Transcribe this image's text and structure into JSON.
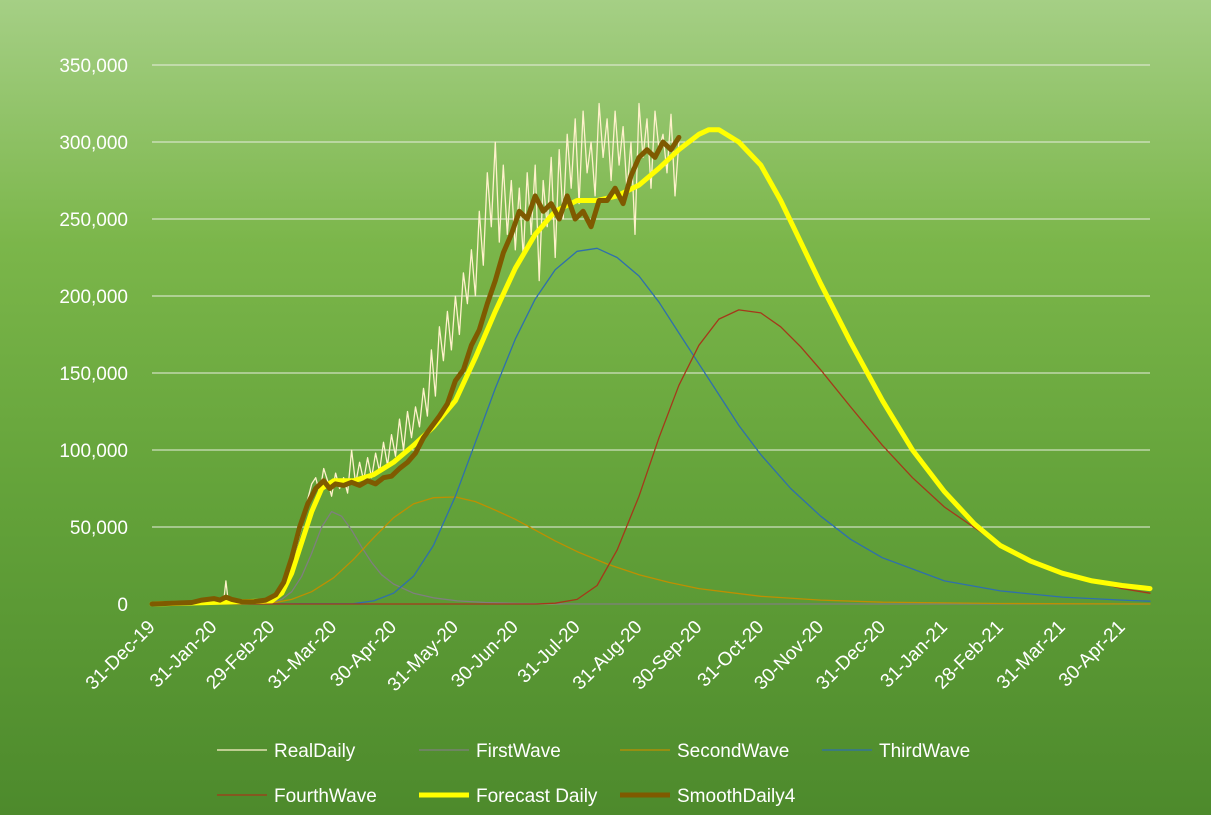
{
  "chart_data": {
    "type": "line",
    "title": "",
    "xlabel": "",
    "ylabel": "",
    "ylim": [
      0,
      350000
    ],
    "y_ticks": [
      0,
      50000,
      100000,
      150000,
      200000,
      250000,
      300000,
      350000
    ],
    "y_tick_labels": [
      "0",
      "50,000",
      "100,000",
      "150,000",
      "200,000",
      "250,000",
      "300,000",
      "350,000"
    ],
    "x_tick_dates": [
      "2019-12-31",
      "2020-01-31",
      "2020-02-29",
      "2020-03-31",
      "2020-04-30",
      "2020-05-31",
      "2020-06-30",
      "2020-07-31",
      "2020-08-31",
      "2020-09-30",
      "2020-10-31",
      "2020-11-30",
      "2020-12-31",
      "2021-01-31",
      "2021-02-28",
      "2021-03-31",
      "2021-04-30"
    ],
    "x_tick_labels": [
      "31-Dec-19",
      "31-Jan-20",
      "29-Feb-20",
      "31-Mar-20",
      "30-Apr-20",
      "31-May-20",
      "30-Jun-20",
      "31-Jul-20",
      "31-Aug-20",
      "30-Sep-20",
      "31-Oct-20",
      "30-Nov-20",
      "31-Dec-20",
      "31-Jan-21",
      "28-Feb-21",
      "31-Mar-21",
      "30-Apr-21"
    ],
    "xlim": [
      "2019-12-31",
      "2021-05-14"
    ],
    "grid": true,
    "legend_position": "bottom",
    "series": [
      {
        "name": "RealDaily",
        "color": "#fff2cc",
        "width": 1.3,
        "x": [
          "2019-12-31",
          "2020-01-20",
          "2020-01-31",
          "2020-02-05",
          "2020-02-06",
          "2020-02-07",
          "2020-02-10",
          "2020-02-17",
          "2020-02-24",
          "2020-03-02",
          "2020-03-06",
          "2020-03-10",
          "2020-03-13",
          "2020-03-16",
          "2020-03-18",
          "2020-03-20",
          "2020-03-22",
          "2020-03-24",
          "2020-03-26",
          "2020-03-28",
          "2020-03-30",
          "2020-04-01",
          "2020-04-03",
          "2020-04-05",
          "2020-04-07",
          "2020-04-09",
          "2020-04-11",
          "2020-04-13",
          "2020-04-15",
          "2020-04-17",
          "2020-04-19",
          "2020-04-21",
          "2020-04-23",
          "2020-04-25",
          "2020-04-27",
          "2020-04-29",
          "2020-05-01",
          "2020-05-03",
          "2020-05-05",
          "2020-05-07",
          "2020-05-09",
          "2020-05-11",
          "2020-05-13",
          "2020-05-15",
          "2020-05-17",
          "2020-05-19",
          "2020-05-21",
          "2020-05-23",
          "2020-05-25",
          "2020-05-27",
          "2020-05-29",
          "2020-05-31",
          "2020-06-02",
          "2020-06-04",
          "2020-06-06",
          "2020-06-08",
          "2020-06-10",
          "2020-06-12",
          "2020-06-14",
          "2020-06-16",
          "2020-06-18",
          "2020-06-20",
          "2020-06-22",
          "2020-06-24",
          "2020-06-26",
          "2020-06-28",
          "2020-06-30",
          "2020-07-02",
          "2020-07-04",
          "2020-07-06",
          "2020-07-08",
          "2020-07-10",
          "2020-07-12",
          "2020-07-14",
          "2020-07-16",
          "2020-07-18",
          "2020-07-20",
          "2020-07-22",
          "2020-07-24",
          "2020-07-26",
          "2020-07-28",
          "2020-07-30",
          "2020-08-01",
          "2020-08-03",
          "2020-08-05",
          "2020-08-07",
          "2020-08-09",
          "2020-08-11",
          "2020-08-13",
          "2020-08-15",
          "2020-08-17",
          "2020-08-19",
          "2020-08-21",
          "2020-08-23",
          "2020-08-25",
          "2020-08-27",
          "2020-08-29",
          "2020-08-31",
          "2020-09-02",
          "2020-09-04",
          "2020-09-06",
          "2020-09-08",
          "2020-09-10",
          "2020-09-12",
          "2020-09-14",
          "2020-09-16",
          "2020-09-18",
          "2020-09-20"
        ],
        "y": [
          0,
          0,
          2000,
          3000,
          15000,
          4000,
          2000,
          1000,
          1500,
          5000,
          12000,
          25000,
          40000,
          55000,
          68000,
          78000,
          82000,
          72000,
          88000,
          80000,
          70000,
          85000,
          75000,
          82000,
          72000,
          100000,
          78000,
          92000,
          80000,
          95000,
          82000,
          98000,
          86000,
          105000,
          90000,
          110000,
          96000,
          120000,
          100000,
          125000,
          108000,
          128000,
          115000,
          140000,
          122000,
          165000,
          135000,
          180000,
          158000,
          190000,
          165000,
          200000,
          175000,
          215000,
          195000,
          230000,
          200000,
          255000,
          220000,
          280000,
          245000,
          300000,
          235000,
          285000,
          240000,
          275000,
          230000,
          270000,
          225000,
          280000,
          240000,
          285000,
          210000,
          275000,
          245000,
          290000,
          225000,
          295000,
          250000,
          305000,
          270000,
          315000,
          260000,
          320000,
          280000,
          300000,
          265000,
          325000,
          290000,
          315000,
          275000,
          320000,
          285000,
          310000,
          268000,
          300000,
          240000,
          325000,
          290000,
          315000,
          270000,
          320000,
          295000,
          305000,
          280000,
          318000,
          265000,
          300000
        ]
      },
      {
        "name": "FirstWave",
        "color": "#7f7f7f",
        "width": 1.3,
        "x": [
          "2019-12-31",
          "2020-02-29",
          "2020-03-05",
          "2020-03-10",
          "2020-03-15",
          "2020-03-20",
          "2020-03-25",
          "2020-03-30",
          "2020-04-04",
          "2020-04-09",
          "2020-04-14",
          "2020-04-19",
          "2020-04-24",
          "2020-04-30",
          "2020-05-10",
          "2020-05-20",
          "2020-06-01",
          "2020-06-15",
          "2020-07-01",
          "2020-08-01",
          "2021-05-14"
        ],
        "y": [
          0,
          1000,
          3000,
          8000,
          18000,
          33000,
          50000,
          60000,
          57000,
          48000,
          37000,
          27000,
          19000,
          13000,
          7000,
          4000,
          2000,
          1000,
          400,
          0,
          0
        ]
      },
      {
        "name": "SecondWave",
        "color": "#bf8f00",
        "width": 1.3,
        "x": [
          "2019-12-31",
          "2020-02-29",
          "2020-03-10",
          "2020-03-20",
          "2020-03-31",
          "2020-04-10",
          "2020-04-20",
          "2020-04-30",
          "2020-05-10",
          "2020-05-20",
          "2020-05-31",
          "2020-06-10",
          "2020-06-20",
          "2020-06-30",
          "2020-07-10",
          "2020-07-20",
          "2020-07-31",
          "2020-08-15",
          "2020-08-31",
          "2020-09-15",
          "2020-09-30",
          "2020-10-31",
          "2020-11-30",
          "2020-12-31",
          "2021-02-28",
          "2021-05-14"
        ],
        "y": [
          0,
          500,
          3000,
          8000,
          17000,
          29000,
          43000,
          56000,
          65000,
          69000,
          69500,
          66500,
          61000,
          55000,
          48000,
          41000,
          34000,
          26000,
          19000,
          14000,
          10000,
          5000,
          2500,
          1200,
          300,
          0
        ]
      },
      {
        "name": "ThirdWave",
        "color": "#2f6fad",
        "width": 1.3,
        "x": [
          "2019-12-31",
          "2020-04-10",
          "2020-04-20",
          "2020-04-30",
          "2020-05-10",
          "2020-05-20",
          "2020-05-31",
          "2020-06-10",
          "2020-06-20",
          "2020-06-30",
          "2020-07-10",
          "2020-07-20",
          "2020-07-31",
          "2020-08-10",
          "2020-08-20",
          "2020-08-31",
          "2020-09-10",
          "2020-09-20",
          "2020-09-30",
          "2020-10-10",
          "2020-10-20",
          "2020-10-31",
          "2020-11-15",
          "2020-11-30",
          "2020-12-15",
          "2020-12-31",
          "2021-01-31",
          "2021-02-28",
          "2021-03-31",
          "2021-04-30",
          "2021-05-14"
        ],
        "y": [
          0,
          200,
          2000,
          7000,
          18000,
          38000,
          70000,
          105000,
          140000,
          172000,
          198000,
          217000,
          229000,
          231000,
          225000,
          213000,
          196000,
          176000,
          156000,
          136000,
          116000,
          97000,
          75000,
          57000,
          42000,
          30000,
          15000,
          8500,
          4500,
          2500,
          1800
        ]
      },
      {
        "name": "FourthWave",
        "color": "#a5381a",
        "width": 1.3,
        "x": [
          "2019-12-31",
          "2020-07-10",
          "2020-07-20",
          "2020-07-31",
          "2020-08-10",
          "2020-08-20",
          "2020-08-31",
          "2020-09-10",
          "2020-09-20",
          "2020-09-30",
          "2020-10-10",
          "2020-10-20",
          "2020-10-31",
          "2020-11-10",
          "2020-11-20",
          "2020-11-30",
          "2020-12-15",
          "2020-12-31",
          "2021-01-15",
          "2021-01-31",
          "2021-02-28",
          "2021-03-31",
          "2021-04-30",
          "2021-05-14"
        ],
        "y": [
          0,
          0,
          500,
          3000,
          12000,
          35000,
          70000,
          108000,
          142000,
          168000,
          185000,
          191000,
          189000,
          180000,
          167000,
          152000,
          128000,
          103000,
          82000,
          63000,
          38000,
          20000,
          10000,
          7000
        ]
      },
      {
        "name": "Forecast Daily",
        "color": "#ffff00",
        "width": 5,
        "x": [
          "2019-12-31",
          "2020-02-29",
          "2020-03-05",
          "2020-03-10",
          "2020-03-15",
          "2020-03-20",
          "2020-03-25",
          "2020-03-31",
          "2020-04-10",
          "2020-04-20",
          "2020-04-30",
          "2020-05-10",
          "2020-05-20",
          "2020-05-31",
          "2020-06-10",
          "2020-06-20",
          "2020-06-30",
          "2020-07-10",
          "2020-07-20",
          "2020-07-31",
          "2020-08-10",
          "2020-08-20",
          "2020-08-31",
          "2020-09-10",
          "2020-09-20",
          "2020-09-30",
          "2020-10-05",
          "2020-10-10",
          "2020-10-20",
          "2020-10-31",
          "2020-11-10",
          "2020-11-20",
          "2020-11-30",
          "2020-12-15",
          "2020-12-31",
          "2021-01-15",
          "2021-01-31",
          "2021-02-15",
          "2021-02-28",
          "2021-03-15",
          "2021-03-31",
          "2021-04-15",
          "2021-04-30",
          "2021-05-14"
        ],
        "y": [
          0,
          2000,
          7000,
          20000,
          40000,
          60000,
          75000,
          80000,
          80000,
          84000,
          92000,
          103000,
          115000,
          132000,
          160000,
          190000,
          218000,
          240000,
          255000,
          262000,
          262000,
          265000,
          272000,
          283000,
          295000,
          305000,
          308000,
          308000,
          300000,
          285000,
          262000,
          235000,
          208000,
          170000,
          132000,
          100000,
          73000,
          52000,
          38000,
          28000,
          20000,
          15000,
          12000,
          10000
        ]
      },
      {
        "name": "SmoothDaily4",
        "color": "#7f5a00",
        "width": 5,
        "x": [
          "2019-12-31",
          "2020-01-20",
          "2020-01-25",
          "2020-01-31",
          "2020-02-03",
          "2020-02-06",
          "2020-02-09",
          "2020-02-14",
          "2020-02-20",
          "2020-02-26",
          "2020-03-02",
          "2020-03-06",
          "2020-03-10",
          "2020-03-14",
          "2020-03-18",
          "2020-03-22",
          "2020-03-26",
          "2020-03-29",
          "2020-04-01",
          "2020-04-05",
          "2020-04-09",
          "2020-04-13",
          "2020-04-17",
          "2020-04-21",
          "2020-04-25",
          "2020-04-29",
          "2020-05-03",
          "2020-05-07",
          "2020-05-11",
          "2020-05-15",
          "2020-05-19",
          "2020-05-23",
          "2020-05-27",
          "2020-05-31",
          "2020-06-04",
          "2020-06-08",
          "2020-06-12",
          "2020-06-16",
          "2020-06-20",
          "2020-06-24",
          "2020-06-28",
          "2020-07-02",
          "2020-07-06",
          "2020-07-10",
          "2020-07-14",
          "2020-07-18",
          "2020-07-22",
          "2020-07-26",
          "2020-07-30",
          "2020-08-03",
          "2020-08-07",
          "2020-08-11",
          "2020-08-15",
          "2020-08-19",
          "2020-08-23",
          "2020-08-27",
          "2020-08-31",
          "2020-09-04",
          "2020-09-08",
          "2020-09-12",
          "2020-09-16",
          "2020-09-20"
        ],
        "y": [
          0,
          1000,
          2500,
          3500,
          2500,
          4500,
          3000,
          1500,
          1500,
          2500,
          6000,
          14000,
          30000,
          50000,
          65000,
          75000,
          80000,
          75000,
          78000,
          77000,
          79000,
          77000,
          80000,
          78000,
          82000,
          83000,
          88000,
          92000,
          98000,
          108000,
          115000,
          122000,
          130000,
          145000,
          152000,
          168000,
          178000,
          195000,
          210000,
          228000,
          240000,
          255000,
          250000,
          265000,
          255000,
          260000,
          250000,
          265000,
          250000,
          255000,
          245000,
          262000,
          262000,
          270000,
          260000,
          278000,
          290000,
          295000,
          290000,
          300000,
          295000,
          303000
        ]
      }
    ]
  }
}
